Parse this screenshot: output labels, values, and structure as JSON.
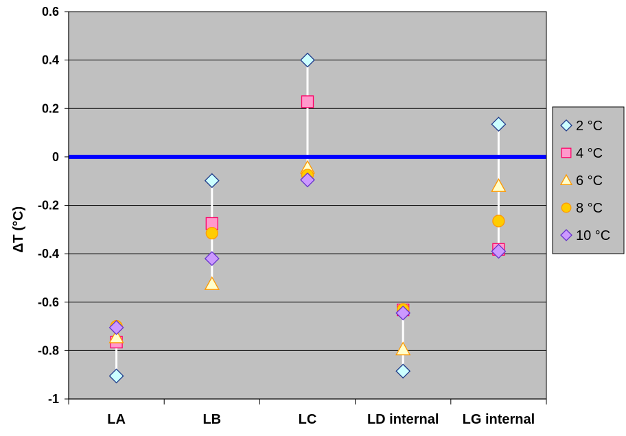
{
  "chart_data": {
    "type": "scatter",
    "title": "",
    "xlabel": "",
    "ylabel": "ΔT (°C)",
    "categories": [
      "LA",
      "LB",
      "LC",
      "LD internal",
      "LG internal"
    ],
    "ylim": [
      -1,
      0.6
    ],
    "yticks": [
      0.6,
      0.4,
      0.2,
      0,
      -0.2,
      -0.4,
      -0.6,
      -0.8,
      -1
    ],
    "ytick_labels": [
      "0.6",
      "0.4",
      "0.2",
      "0",
      "-0.2",
      "-0.4",
      "-0.6",
      "-0.8",
      "-1"
    ],
    "grid": true,
    "legend_position": "right",
    "zero_line_color": "#0000ff",
    "plot_background": "#c0c0c0",
    "range_line_color": "#ffffff",
    "series": [
      {
        "name": "2 °C",
        "marker": "diamond",
        "fill": "#ccffff",
        "stroke": "#1f3b8a",
        "values": [
          -0.905,
          -0.098,
          0.4,
          -0.885,
          0.135
        ]
      },
      {
        "name": "4 °C",
        "marker": "square",
        "fill": "#ff99cc",
        "stroke": "#ff0066",
        "values": [
          -0.765,
          -0.275,
          0.228,
          -0.632,
          -0.382
        ]
      },
      {
        "name": "6 °C",
        "marker": "triangle",
        "fill": "#ffffcc",
        "stroke": "#ff9900",
        "values": [
          -0.745,
          -0.525,
          -0.045,
          -0.795,
          -0.12
        ]
      },
      {
        "name": "8 °C",
        "marker": "circle",
        "fill": "#ffcc00",
        "stroke": "#ff9900",
        "values": [
          -0.7,
          -0.315,
          -0.075,
          -0.63,
          -0.265
        ]
      },
      {
        "name": "10 °C",
        "marker": "diamond",
        "fill": "#cc99ff",
        "stroke": "#6633cc",
        "values": [
          -0.705,
          -0.42,
          -0.095,
          -0.645,
          -0.39
        ]
      }
    ]
  }
}
